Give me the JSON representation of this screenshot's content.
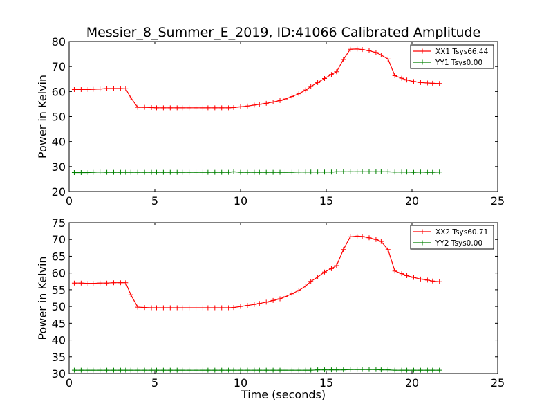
{
  "figure": {
    "title": "Messier_8_Summer_E_2019, ID:41066 Calibrated Amplitude",
    "xlabel": "Time (seconds)"
  },
  "colors": {
    "xx": "#ff0000",
    "yy": "#008000",
    "axes": "#000000",
    "background": "#ffffff"
  },
  "chart_data": [
    {
      "type": "line",
      "ylabel": "Power in Kelvin",
      "xlim": [
        0,
        25
      ],
      "ylim": [
        20,
        80
      ],
      "xticks": [
        "0",
        "5",
        "10",
        "15",
        "20",
        "25"
      ],
      "yticks": [
        "20",
        "30",
        "40",
        "50",
        "60",
        "70",
        "80"
      ],
      "grid": false,
      "legend_position": "top-right",
      "series": [
        {
          "name": "XX1 Tsys66.44",
          "color": "#ff0000",
          "x": [
            0.3,
            0.7,
            1.1,
            1.4,
            1.8,
            2.2,
            2.6,
            3.0,
            3.3,
            3.6,
            4.0,
            4.4,
            4.8,
            5.1,
            5.5,
            5.9,
            6.3,
            6.6,
            7.0,
            7.4,
            7.8,
            8.1,
            8.5,
            8.9,
            9.3,
            9.6,
            10.0,
            10.4,
            10.8,
            11.1,
            11.5,
            11.9,
            12.3,
            12.6,
            13.0,
            13.4,
            13.8,
            14.1,
            14.5,
            14.9,
            15.3,
            15.6,
            16.0,
            16.4,
            16.8,
            17.1,
            17.5,
            17.9,
            18.2,
            18.6,
            19.0,
            19.4,
            19.7,
            20.1,
            20.5,
            20.9,
            21.2,
            21.6
          ],
          "y": [
            60.8,
            60.8,
            60.8,
            60.9,
            61.0,
            61.2,
            61.2,
            61.2,
            61.1,
            57.5,
            53.7,
            53.7,
            53.6,
            53.5,
            53.5,
            53.5,
            53.5,
            53.5,
            53.5,
            53.5,
            53.5,
            53.5,
            53.5,
            53.5,
            53.5,
            53.6,
            53.9,
            54.2,
            54.6,
            54.9,
            55.3,
            55.8,
            56.4,
            57.0,
            58.0,
            59.1,
            60.6,
            62.0,
            63.6,
            65.2,
            66.8,
            67.9,
            72.8,
            76.9,
            77.0,
            76.8,
            76.3,
            75.6,
            74.6,
            73.0,
            66.3,
            65.3,
            64.6,
            64.0,
            63.6,
            63.4,
            63.3,
            63.2
          ]
        },
        {
          "name": "YY1 Tsys0.00",
          "color": "#008000",
          "x": [
            0.3,
            0.7,
            1.1,
            1.4,
            1.8,
            2.2,
            2.6,
            3.0,
            3.3,
            3.6,
            4.0,
            4.4,
            4.8,
            5.1,
            5.5,
            5.9,
            6.3,
            6.6,
            7.0,
            7.4,
            7.8,
            8.1,
            8.5,
            8.9,
            9.3,
            9.6,
            10.0,
            10.4,
            10.8,
            11.1,
            11.5,
            11.9,
            12.3,
            12.6,
            13.0,
            13.4,
            13.8,
            14.1,
            14.5,
            14.9,
            15.3,
            15.6,
            16.0,
            16.4,
            16.8,
            17.1,
            17.5,
            17.9,
            18.2,
            18.6,
            19.0,
            19.4,
            19.7,
            20.1,
            20.5,
            20.9,
            21.2,
            21.6
          ],
          "y": [
            27.6,
            27.6,
            27.6,
            27.7,
            27.8,
            27.7,
            27.7,
            27.7,
            27.7,
            27.7,
            27.7,
            27.7,
            27.7,
            27.7,
            27.7,
            27.7,
            27.7,
            27.7,
            27.7,
            27.7,
            27.7,
            27.7,
            27.7,
            27.7,
            27.7,
            27.9,
            27.7,
            27.7,
            27.7,
            27.7,
            27.7,
            27.7,
            27.7,
            27.7,
            27.7,
            27.8,
            27.8,
            27.8,
            27.8,
            27.8,
            27.8,
            27.9,
            27.9,
            27.9,
            27.9,
            27.9,
            27.9,
            27.9,
            27.9,
            27.9,
            27.8,
            27.8,
            27.8,
            27.7,
            27.8,
            27.7,
            27.7,
            27.8
          ]
        }
      ]
    },
    {
      "type": "line",
      "ylabel": "Power in Kelvin",
      "xlabel": "Time (seconds)",
      "xlim": [
        0,
        25
      ],
      "ylim": [
        30,
        75
      ],
      "xticks": [
        "0",
        "5",
        "10",
        "15",
        "20",
        "25"
      ],
      "yticks": [
        "30",
        "35",
        "40",
        "45",
        "50",
        "55",
        "60",
        "65",
        "70",
        "75"
      ],
      "grid": false,
      "legend_position": "top-right",
      "series": [
        {
          "name": "XX2 Tsys60.71",
          "color": "#ff0000",
          "x": [
            0.3,
            0.7,
            1.1,
            1.4,
            1.8,
            2.2,
            2.6,
            3.0,
            3.3,
            3.6,
            4.0,
            4.4,
            4.8,
            5.1,
            5.5,
            5.9,
            6.3,
            6.6,
            7.0,
            7.4,
            7.8,
            8.1,
            8.5,
            8.9,
            9.3,
            9.6,
            10.0,
            10.4,
            10.8,
            11.1,
            11.5,
            11.9,
            12.3,
            12.6,
            13.0,
            13.4,
            13.8,
            14.1,
            14.5,
            14.9,
            15.3,
            15.6,
            16.0,
            16.4,
            16.8,
            17.1,
            17.5,
            17.9,
            18.2,
            18.6,
            19.0,
            19.4,
            19.7,
            20.1,
            20.5,
            20.9,
            21.2,
            21.6
          ],
          "y": [
            57.0,
            57.0,
            56.9,
            56.9,
            57.0,
            57.0,
            57.1,
            57.1,
            57.1,
            53.5,
            49.8,
            49.7,
            49.6,
            49.6,
            49.6,
            49.6,
            49.6,
            49.6,
            49.6,
            49.6,
            49.6,
            49.6,
            49.6,
            49.6,
            49.6,
            49.7,
            50.0,
            50.3,
            50.6,
            50.9,
            51.3,
            51.8,
            52.3,
            52.9,
            53.8,
            54.8,
            56.1,
            57.5,
            58.8,
            60.3,
            61.3,
            62.2,
            67.0,
            70.8,
            71.0,
            70.9,
            70.5,
            70.0,
            69.4,
            67.0,
            60.6,
            59.8,
            59.2,
            58.7,
            58.2,
            57.9,
            57.6,
            57.4
          ]
        },
        {
          "name": "YY2 Tsys0.00",
          "color": "#008000",
          "x": [
            0.3,
            0.7,
            1.1,
            1.4,
            1.8,
            2.2,
            2.6,
            3.0,
            3.3,
            3.6,
            4.0,
            4.4,
            4.8,
            5.1,
            5.5,
            5.9,
            6.3,
            6.6,
            7.0,
            7.4,
            7.8,
            8.1,
            8.5,
            8.9,
            9.3,
            9.6,
            10.0,
            10.4,
            10.8,
            11.1,
            11.5,
            11.9,
            12.3,
            12.6,
            13.0,
            13.4,
            13.8,
            14.1,
            14.5,
            14.9,
            15.3,
            15.6,
            16.0,
            16.4,
            16.8,
            17.1,
            17.5,
            17.9,
            18.2,
            18.6,
            19.0,
            19.4,
            19.7,
            20.1,
            20.5,
            20.9,
            21.2,
            21.6
          ],
          "y": [
            31.0,
            31.0,
            31.0,
            31.0,
            31.0,
            31.0,
            31.0,
            31.0,
            31.0,
            31.0,
            31.0,
            31.0,
            31.0,
            31.0,
            31.0,
            31.0,
            31.0,
            31.0,
            31.0,
            31.0,
            31.0,
            31.0,
            31.0,
            31.0,
            31.0,
            31.0,
            31.0,
            31.0,
            31.0,
            31.0,
            31.0,
            31.0,
            31.0,
            31.0,
            31.0,
            31.0,
            31.0,
            31.0,
            31.1,
            31.1,
            31.1,
            31.1,
            31.1,
            31.2,
            31.2,
            31.2,
            31.2,
            31.2,
            31.1,
            31.1,
            31.0,
            31.0,
            31.0,
            31.0,
            31.0,
            31.0,
            31.0,
            31.0
          ]
        }
      ]
    }
  ]
}
